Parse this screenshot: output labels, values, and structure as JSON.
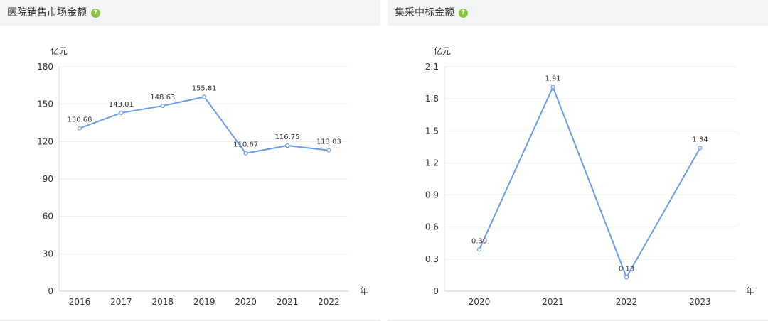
{
  "colors": {
    "line": "#6b9cf0",
    "help_icon": "#8cc63f",
    "grid": "#eeeeee",
    "header": "#f3f4f6"
  },
  "panels": [
    {
      "title": "医院销售市场金额",
      "help_icon": "help-icon"
    },
    {
      "title": "集采中标金额",
      "help_icon": "help-icon"
    }
  ],
  "chart_data": [
    {
      "type": "line",
      "title": "医院销售市场金额",
      "ylabel": "亿元",
      "xlabel": "年",
      "categories": [
        "2016",
        "2017",
        "2018",
        "2019",
        "2020",
        "2021",
        "2022"
      ],
      "values": [
        130.68,
        143.01,
        148.63,
        155.81,
        110.67,
        116.75,
        113.03
      ],
      "value_labels": [
        "130.68",
        "143.01",
        "148.63",
        "155.81",
        "110.67",
        "116.75",
        "113.03"
      ],
      "yticks": [
        "0",
        "30",
        "60",
        "90",
        "120",
        "150",
        "180"
      ],
      "ylim": [
        0,
        180
      ],
      "grid": true
    },
    {
      "type": "line",
      "title": "集采中标金额",
      "ylabel": "亿元",
      "xlabel": "年",
      "categories": [
        "2020",
        "2021",
        "2022",
        "2023"
      ],
      "values": [
        0.39,
        1.91,
        0.13,
        1.34
      ],
      "value_labels": [
        "0.39",
        "1.91",
        "0.13",
        "1.34"
      ],
      "yticks": [
        "0",
        "0.3",
        "0.6",
        "0.9",
        "1.2",
        "1.5",
        "1.8",
        "2.1"
      ],
      "ylim": [
        0,
        2.1
      ],
      "grid": true
    }
  ]
}
